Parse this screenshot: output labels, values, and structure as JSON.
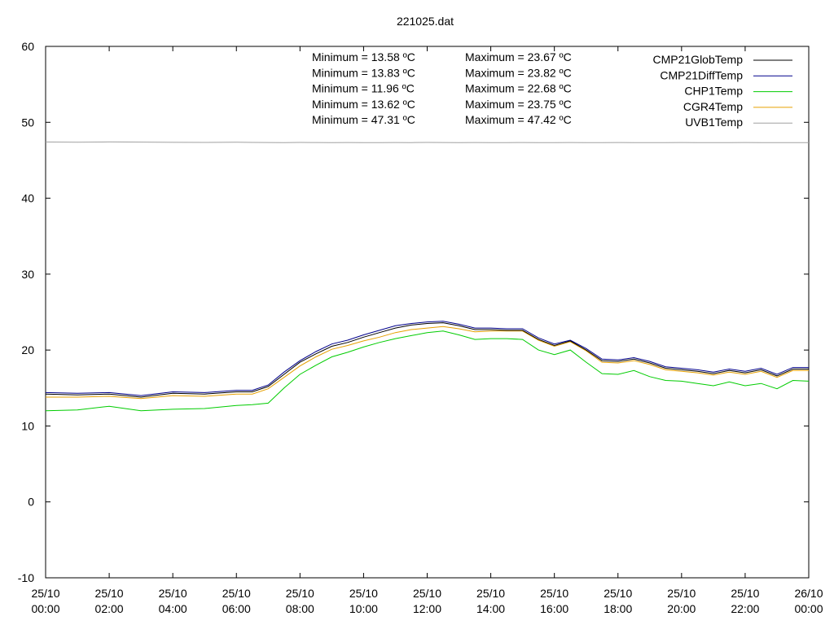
{
  "chart_data": {
    "type": "line",
    "title": "221025.dat",
    "xlabel": "",
    "ylabel": "",
    "ylim": [
      -10,
      60
    ],
    "yticks": [
      -10,
      0,
      10,
      20,
      30,
      40,
      50,
      60
    ],
    "xlim": [
      "25/10 00:00",
      "26/10 00:00"
    ],
    "xticks": [
      [
        "25/10",
        "00:00"
      ],
      [
        "25/10",
        "02:00"
      ],
      [
        "25/10",
        "04:00"
      ],
      [
        "25/10",
        "06:00"
      ],
      [
        "25/10",
        "08:00"
      ],
      [
        "25/10",
        "10:00"
      ],
      [
        "25/10",
        "12:00"
      ],
      [
        "25/10",
        "14:00"
      ],
      [
        "25/10",
        "16:00"
      ],
      [
        "25/10",
        "18:00"
      ],
      [
        "25/10",
        "20:00"
      ],
      [
        "25/10",
        "22:00"
      ],
      [
        "26/10",
        "00:00"
      ]
    ],
    "grid": false,
    "legend_position": "top-right",
    "stats": [
      {
        "min": "Minimum = 13.58 ºC",
        "max": "Maximum = 23.67 ºC"
      },
      {
        "min": "Minimum = 13.83 ºC",
        "max": "Maximum = 23.82 ºC"
      },
      {
        "min": "Minimum = 11.96 ºC",
        "max": "Maximum = 22.68 ºC"
      },
      {
        "min": "Minimum = 13.62 ºC",
        "max": "Maximum = 23.75 ºC"
      },
      {
        "min": "Minimum = 47.31 ºC",
        "max": "Maximum = 47.42 ºC"
      }
    ],
    "x_hours": [
      0,
      1,
      2,
      3,
      4,
      5,
      6,
      6.5,
      7,
      7.5,
      8,
      8.5,
      9,
      9.5,
      10,
      10.5,
      11,
      11.5,
      12,
      12.5,
      13,
      13.5,
      14,
      14.5,
      15,
      15.5,
      16,
      16.5,
      17,
      17.5,
      18,
      18.5,
      19,
      19.5,
      20,
      20.5,
      21,
      21.5,
      22,
      22.5,
      23,
      23.5,
      24
    ],
    "series": [
      {
        "name": "CMP21GlobTemp",
        "color": "#000000",
        "values": [
          14.2,
          14.1,
          14.2,
          13.8,
          14.3,
          14.2,
          14.5,
          14.5,
          15.2,
          16.8,
          18.4,
          19.5,
          20.5,
          21.0,
          21.7,
          22.3,
          22.9,
          23.3,
          23.5,
          23.6,
          23.2,
          22.7,
          22.7,
          22.6,
          22.6,
          21.4,
          20.6,
          21.2,
          20.0,
          18.6,
          18.5,
          18.8,
          18.3,
          17.6,
          17.4,
          17.2,
          16.9,
          17.3,
          17.0,
          17.4,
          16.6,
          17.5,
          17.5
        ]
      },
      {
        "name": "CMP21DiffTemp",
        "color": "#00008b",
        "values": [
          14.4,
          14.3,
          14.4,
          14.0,
          14.5,
          14.4,
          14.7,
          14.7,
          15.4,
          17.1,
          18.6,
          19.8,
          20.8,
          21.3,
          22.0,
          22.6,
          23.2,
          23.5,
          23.7,
          23.8,
          23.4,
          22.9,
          22.9,
          22.8,
          22.8,
          21.6,
          20.8,
          21.3,
          20.2,
          18.8,
          18.7,
          19.0,
          18.5,
          17.8,
          17.6,
          17.4,
          17.1,
          17.5,
          17.2,
          17.6,
          16.8,
          17.7,
          17.7
        ]
      },
      {
        "name": "CHP1Temp",
        "color": "#00cc00",
        "values": [
          12.0,
          12.1,
          12.6,
          12.0,
          12.2,
          12.3,
          12.7,
          12.8,
          13.0,
          15.0,
          16.8,
          18.0,
          19.1,
          19.7,
          20.4,
          21.0,
          21.5,
          21.9,
          22.3,
          22.5,
          22.0,
          21.4,
          21.5,
          21.5,
          21.4,
          20.0,
          19.4,
          20.0,
          18.4,
          16.9,
          16.8,
          17.3,
          16.5,
          16.0,
          15.9,
          15.6,
          15.3,
          15.8,
          15.3,
          15.6,
          14.9,
          16.0,
          15.9
        ]
      },
      {
        "name": "CGR4Temp",
        "color": "#e6a000",
        "values": [
          13.8,
          13.8,
          13.9,
          13.6,
          14.0,
          13.9,
          14.2,
          14.2,
          14.9,
          16.4,
          17.9,
          19.1,
          20.1,
          20.6,
          21.2,
          21.7,
          22.3,
          22.7,
          22.9,
          23.1,
          22.8,
          22.4,
          22.5,
          22.5,
          22.5,
          21.3,
          20.5,
          21.1,
          19.9,
          18.4,
          18.3,
          18.6,
          18.1,
          17.4,
          17.2,
          17.0,
          16.7,
          17.1,
          16.8,
          17.2,
          16.4,
          17.3,
          17.3
        ]
      },
      {
        "name": "UVB1Temp",
        "color": "#a0a0a0",
        "values": [
          47.4,
          47.38,
          47.41,
          47.39,
          47.36,
          47.35,
          47.37,
          47.35,
          47.34,
          47.33,
          47.35,
          47.34,
          47.33,
          47.34,
          47.32,
          47.33,
          47.34,
          47.33,
          47.35,
          47.34,
          47.33,
          47.34,
          47.32,
          47.33,
          47.34,
          47.33,
          47.32,
          47.34,
          47.33,
          47.32,
          47.34,
          47.33,
          47.32,
          47.33,
          47.34,
          47.32,
          47.33,
          47.32,
          47.34,
          47.33,
          47.32,
          47.33,
          47.33
        ]
      }
    ]
  }
}
